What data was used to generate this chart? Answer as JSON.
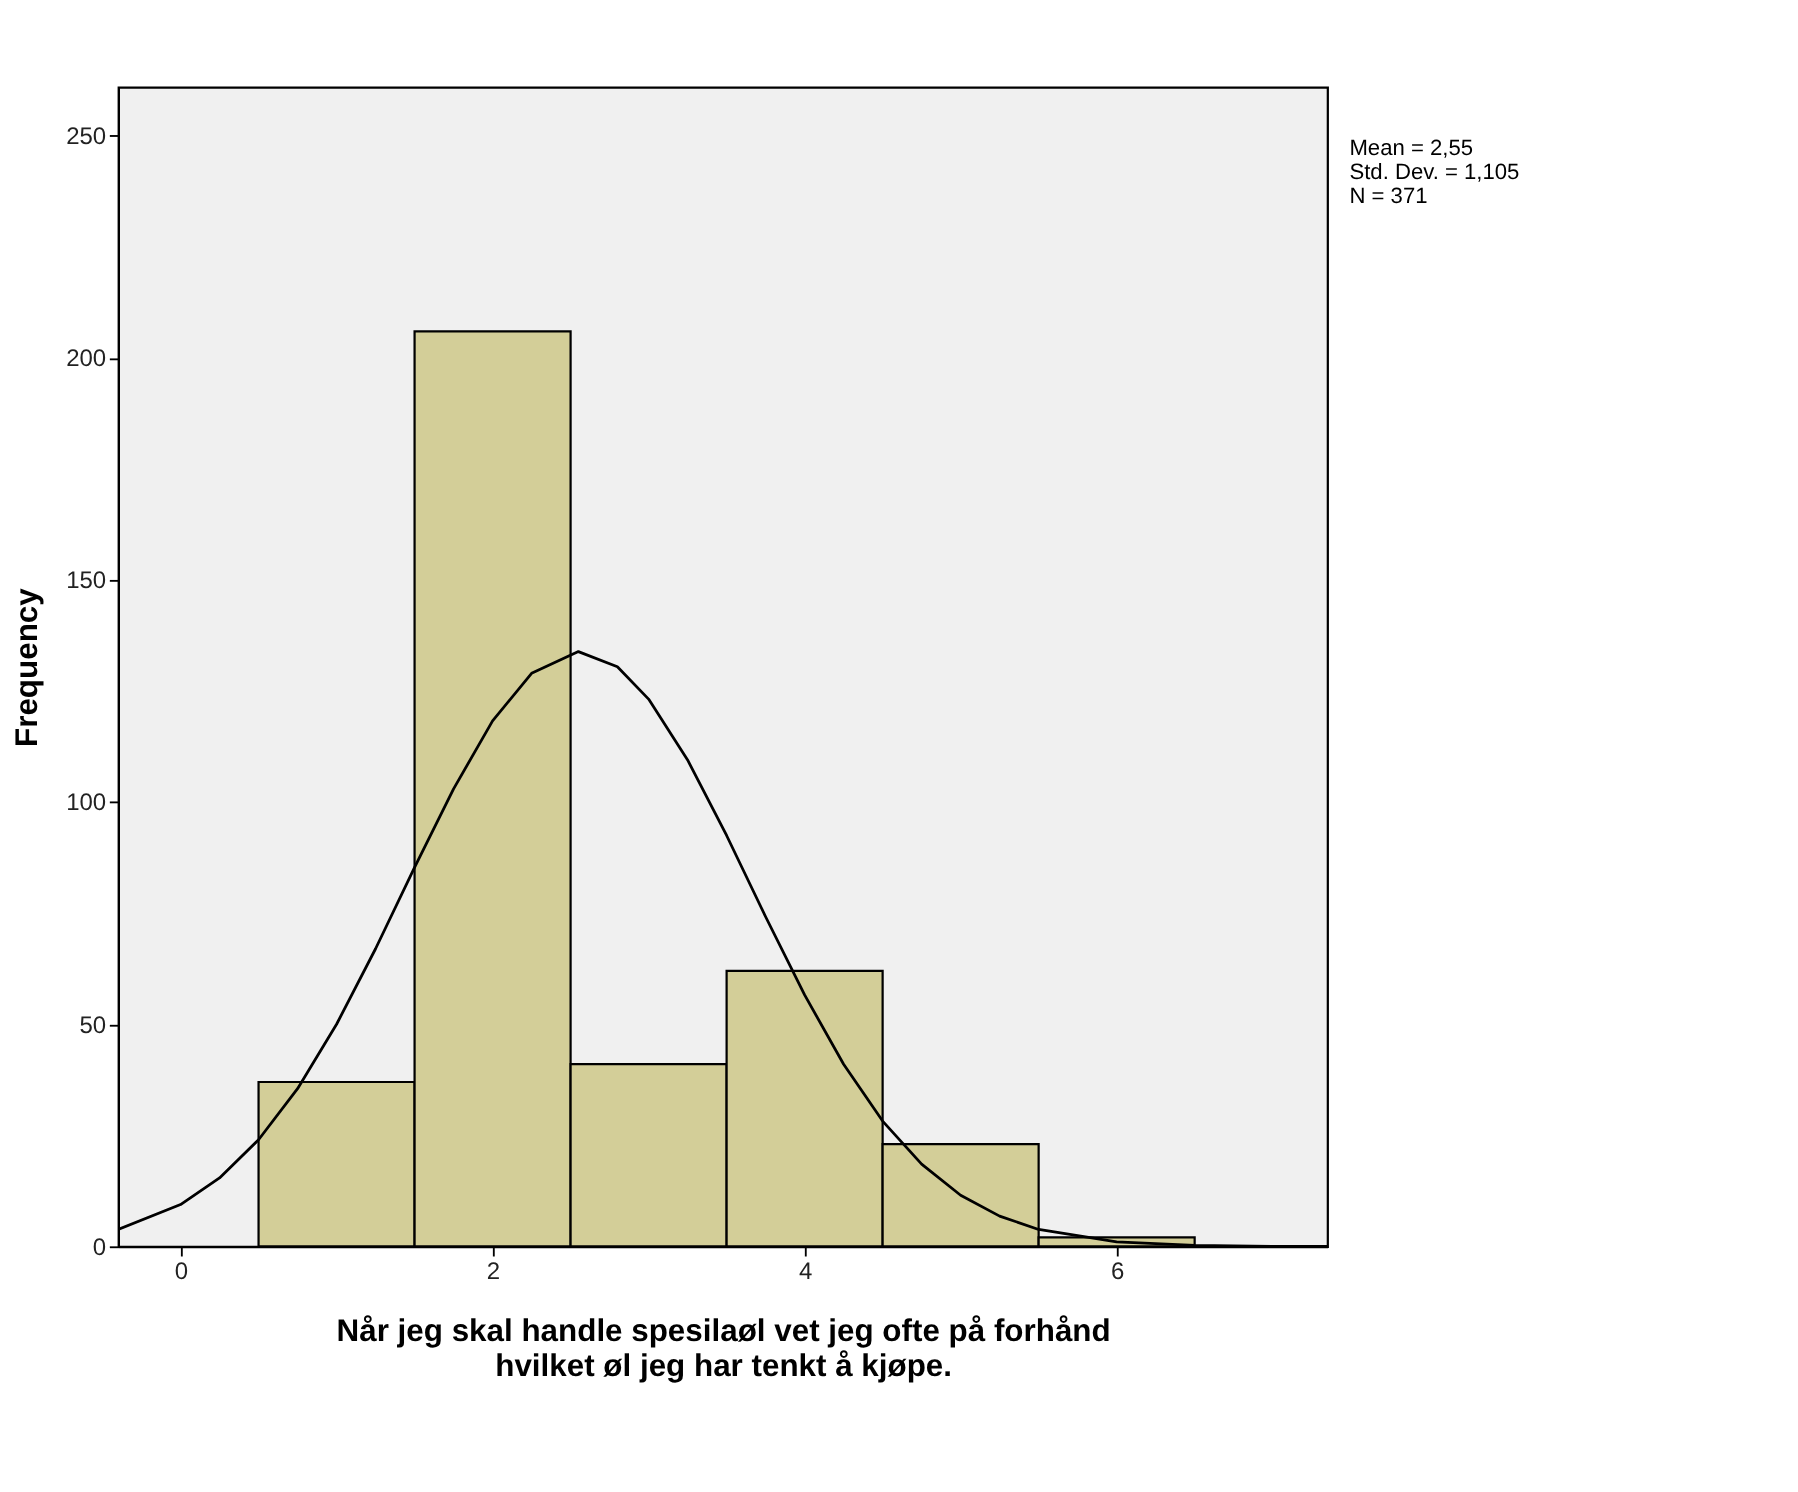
{
  "chart_data": {
    "type": "histogram",
    "xlabel": "Når jeg skal handle spesilaøl vet jeg ofte på forhånd\nhvilket øl jeg har tenkt å kjøpe.",
    "ylabel": "Frequency",
    "bins": [
      0.5,
      1.5,
      2.5,
      3.5,
      4.5,
      5.5,
      6.5
    ],
    "values": [
      37,
      206,
      41,
      62,
      23,
      2
    ],
    "color": "#d3ce98",
    "series": [
      {
        "type": "line",
        "color": "#000000",
        "x": [
          -0.4,
          0,
          0.25,
          0.5,
          0.75,
          1,
          1.25,
          1.5,
          1.75,
          2,
          2.25,
          2.55,
          2.8,
          3,
          3.25,
          3.5,
          3.75,
          4,
          4.25,
          4.5,
          4.75,
          5,
          5.25,
          5.5,
          6,
          6.5,
          7,
          7.35
        ],
        "values": [
          3.8,
          9.4,
          15.4,
          24.0,
          35.5,
          50.0,
          67.0,
          85.3,
          103.0,
          118.3,
          129.0,
          133.9,
          130.5,
          123.2,
          109.5,
          92.5,
          74.2,
          56.6,
          41.0,
          28.2,
          18.5,
          11.5,
          6.8,
          3.8,
          1.0,
          0.2,
          0.0,
          0.0
        ]
      }
    ],
    "xlim": [
      -0.4,
      7.35
    ],
    "xticks": [
      0,
      2,
      4,
      6
    ],
    "ylim": [
      0,
      261
    ],
    "yticks": [
      0,
      50,
      100,
      150,
      200,
      250
    ],
    "annotations": [
      "Mean = 2,55\nStd. Dev. = 1,105\nN = 371"
    ],
    "grid": false,
    "marker": "none",
    "line_style": "solid"
  }
}
